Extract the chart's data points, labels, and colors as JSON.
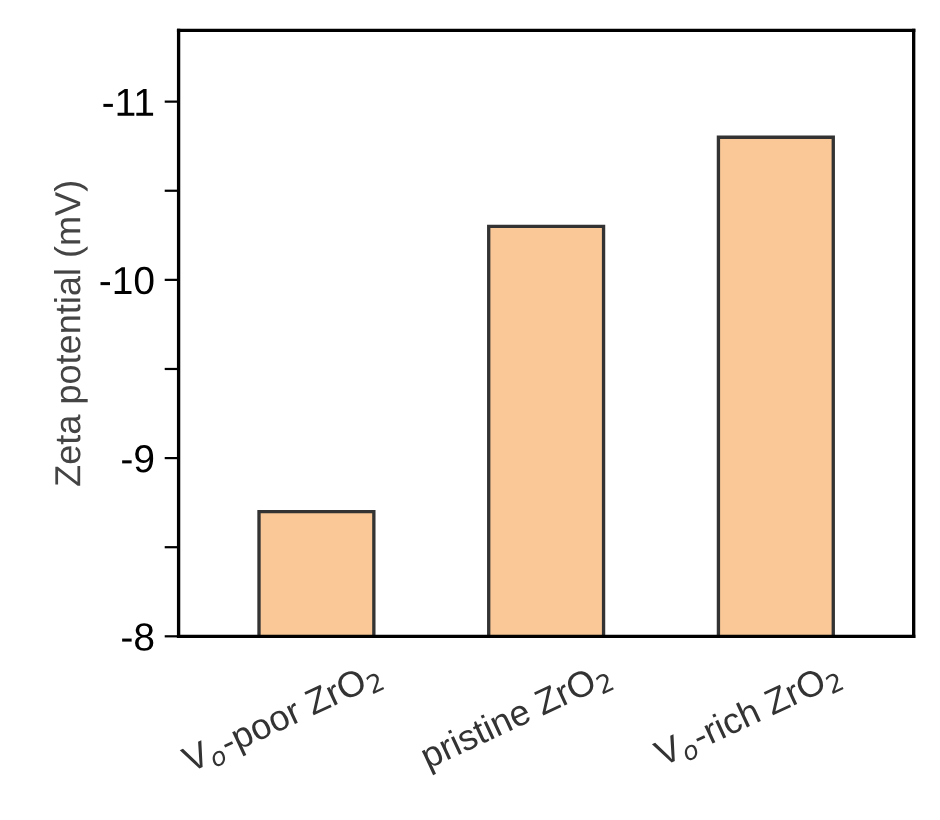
{
  "chart_data": {
    "type": "bar",
    "ylabel": "Zeta potential (mV)",
    "categories": [
      "V$_{o}$-poor ZrO$_{2}$",
      "pristine ZrO$_{2}$",
      "V$_{o}$-rich ZrO$_{2}$"
    ],
    "values": [
      -8.7,
      -10.3,
      -10.8
    ],
    "color": "#f9c896",
    "ylim": [
      -8,
      -11.4
    ],
    "yticks": [
      -8,
      {
        "value": -8.5,
        "label": null
      },
      -9,
      {
        "value": -9.5,
        "label": null
      },
      -10,
      {
        "value": -10.5,
        "label": null
      },
      -11
    ],
    "grid": false,
    "legend": false
  }
}
